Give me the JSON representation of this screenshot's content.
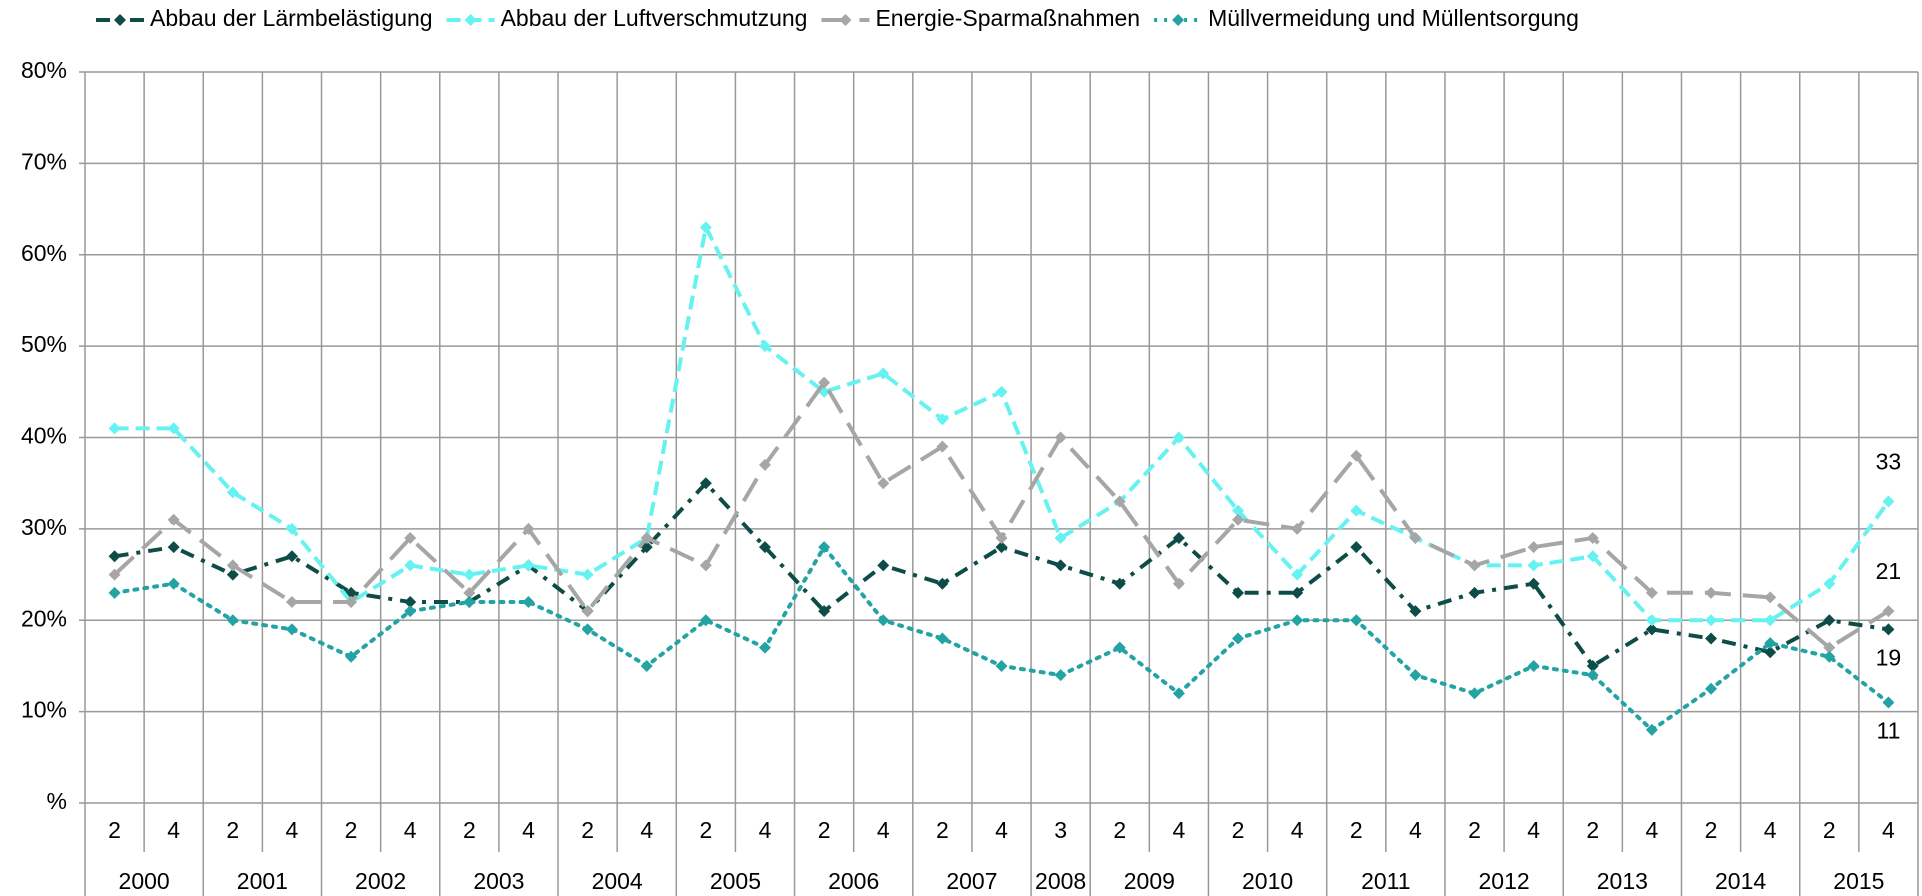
{
  "chart_data": {
    "type": "line",
    "year_groups": [
      {
        "label": "2000",
        "quarters": [
          "2",
          "4"
        ]
      },
      {
        "label": "2001",
        "quarters": [
          "2",
          "4"
        ]
      },
      {
        "label": "2002",
        "quarters": [
          "2",
          "4"
        ]
      },
      {
        "label": "2003",
        "quarters": [
          "2",
          "4"
        ]
      },
      {
        "label": "2004",
        "quarters": [
          "2",
          "4"
        ]
      },
      {
        "label": "2005",
        "quarters": [
          "2",
          "4"
        ]
      },
      {
        "label": "2006",
        "quarters": [
          "2",
          "4"
        ]
      },
      {
        "label": "2007",
        "quarters": [
          "2",
          "4"
        ]
      },
      {
        "label": "2008",
        "quarters": [
          "3"
        ]
      },
      {
        "label": "2009",
        "quarters": [
          "2",
          "4"
        ]
      },
      {
        "label": "2010",
        "quarters": [
          "2",
          "4"
        ]
      },
      {
        "label": "2011",
        "quarters": [
          "2",
          "4"
        ]
      },
      {
        "label": "2012",
        "quarters": [
          "2",
          "4"
        ]
      },
      {
        "label": "2013",
        "quarters": [
          "2",
          "4"
        ]
      },
      {
        "label": "2014",
        "quarters": [
          "2",
          "4"
        ]
      },
      {
        "label": "2015",
        "quarters": [
          "2",
          "4"
        ]
      }
    ],
    "series": [
      {
        "name": "Abbau der Lärmbelästigung",
        "color": "#0e4d47",
        "line_style": "dash-dot",
        "values": [
          27,
          28,
          25,
          27,
          23,
          22,
          22,
          26,
          21,
          28,
          35,
          28,
          21,
          26,
          24,
          28,
          26,
          24,
          29,
          23,
          23,
          28,
          21,
          23,
          24,
          15,
          19,
          18,
          16.5,
          20,
          19
        ]
      },
      {
        "name": "Abbau der Luftverschmutzung",
        "color": "#66f2f0",
        "line_style": "dashed",
        "values": [
          41,
          41,
          34,
          30,
          22,
          26,
          25,
          26,
          25,
          29,
          63,
          50,
          45,
          47,
          42,
          45,
          29,
          33,
          40,
          32,
          25,
          32,
          29,
          26,
          26,
          27,
          20,
          20,
          20,
          24,
          33
        ]
      },
      {
        "name": "Energie-Sparmaßnahmen",
        "color": "#a6a6a6",
        "line_style": "long-dash",
        "values": [
          25,
          31,
          26,
          22,
          22,
          29,
          23,
          30,
          21,
          29,
          26,
          37,
          46,
          35,
          39,
          29,
          40,
          33,
          24,
          31,
          30,
          38,
          29,
          26,
          28,
          29,
          23,
          23,
          22.5,
          17,
          21
        ]
      },
      {
        "name": "Müllvermeidung und Müllentsorgung",
        "color": "#23a3a3",
        "line_style": "dotted",
        "values": [
          23,
          24,
          20,
          19,
          16,
          21,
          22,
          22,
          19,
          15,
          20,
          17,
          28,
          20,
          18,
          15,
          14,
          17,
          12,
          18,
          20,
          20,
          14,
          12,
          15,
          14,
          8,
          12.5,
          17.5,
          16,
          11
        ]
      }
    ],
    "label_last": true,
    "ylim": [
      0,
      80
    ],
    "yticks": [
      {
        "value": 0,
        "label": "%"
      },
      {
        "value": 10,
        "label": "10%"
      },
      {
        "value": 20,
        "label": "20%"
      },
      {
        "value": 30,
        "label": "30%"
      },
      {
        "value": 40,
        "label": "40%"
      },
      {
        "value": 50,
        "label": "50%"
      },
      {
        "value": 60,
        "label": "60%"
      },
      {
        "value": 70,
        "label": "70%"
      },
      {
        "value": 80,
        "label": "80%"
      }
    ],
    "grid": true,
    "legend": "top"
  }
}
